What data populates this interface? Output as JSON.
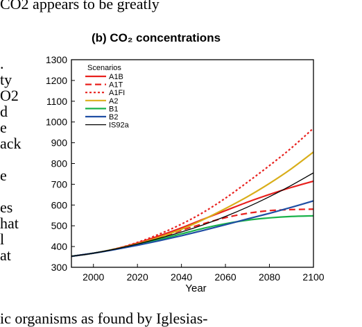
{
  "document": {
    "top_line": "CO2 appears to be greatly",
    "left_column": [
      ".",
      "ty",
      "O2",
      "d",
      "e",
      "ack",
      "",
      "e",
      "",
      "es",
      "hat",
      "l",
      "at"
    ],
    "bottom_line": "ic organisms as found by Iglesias-"
  },
  "chart_data": {
    "type": "line",
    "title": "(b) CO₂ concentrations",
    "xlabel": "Year",
    "ylabel": "",
    "xlim": [
      1990,
      2100
    ],
    "ylim": [
      300,
      1300
    ],
    "xticks": [
      2000,
      2020,
      2040,
      2060,
      2080,
      2100
    ],
    "yticks": [
      300,
      400,
      500,
      600,
      700,
      800,
      900,
      1000,
      1100,
      1200,
      1300
    ],
    "grid": false,
    "legend": {
      "title": "Scenarios",
      "placement": "top-left"
    },
    "series": [
      {
        "name": "A1B",
        "color": "#e8201d",
        "dash": "solid",
        "width": 2.2,
        "x": [
          1990,
          2000,
          2010,
          2020,
          2030,
          2040,
          2050,
          2060,
          2070,
          2080,
          2090,
          2100
        ],
        "y": [
          353,
          368,
          389,
          417,
          452,
          490,
          532,
          573,
          614,
          651,
          685,
          715
        ]
      },
      {
        "name": "A1T",
        "color": "#e8201d",
        "dash": "dashed",
        "width": 2.2,
        "x": [
          1990,
          2000,
          2010,
          2020,
          2030,
          2040,
          2050,
          2060,
          2070,
          2080,
          2090,
          2100
        ],
        "y": [
          353,
          368,
          388,
          414,
          444,
          478,
          510,
          539,
          560,
          573,
          578,
          580
        ]
      },
      {
        "name": "A1FI",
        "color": "#e8201d",
        "dash": "dotted",
        "width": 2.2,
        "x": [
          1990,
          2000,
          2010,
          2020,
          2030,
          2040,
          2050,
          2060,
          2070,
          2080,
          2090,
          2100
        ],
        "y": [
          353,
          368,
          389,
          420,
          460,
          508,
          565,
          633,
          710,
          790,
          875,
          970
        ]
      },
      {
        "name": "A2",
        "color": "#d9ae1a",
        "dash": "solid",
        "width": 2.2,
        "x": [
          1990,
          2000,
          2010,
          2020,
          2030,
          2040,
          2050,
          2060,
          2070,
          2080,
          2090,
          2100
        ],
        "y": [
          353,
          368,
          388,
          413,
          445,
          483,
          530,
          583,
          640,
          704,
          775,
          855
        ]
      },
      {
        "name": "B1",
        "color": "#19b24a",
        "dash": "solid",
        "width": 2.2,
        "x": [
          1990,
          2000,
          2010,
          2020,
          2030,
          2040,
          2050,
          2060,
          2070,
          2080,
          2090,
          2100
        ],
        "y": [
          353,
          368,
          387,
          410,
          434,
          461,
          488,
          510,
          527,
          538,
          545,
          548
        ]
      },
      {
        "name": "B2",
        "color": "#1f4ea3",
        "dash": "solid",
        "width": 2.2,
        "x": [
          1990,
          2000,
          2010,
          2020,
          2030,
          2040,
          2050,
          2060,
          2070,
          2080,
          2090,
          2100
        ],
        "y": [
          353,
          368,
          386,
          406,
          428,
          452,
          478,
          505,
          533,
          560,
          589,
          620
        ]
      },
      {
        "name": "IS92a",
        "color": "#000000",
        "dash": "solid",
        "width": 1.3,
        "x": [
          1990,
          2000,
          2010,
          2020,
          2030,
          2040,
          2050,
          2060,
          2070,
          2080,
          2090,
          2100
        ],
        "y": [
          353,
          368,
          388,
          412,
          440,
          470,
          505,
          545,
          590,
          640,
          695,
          755
        ]
      }
    ]
  }
}
